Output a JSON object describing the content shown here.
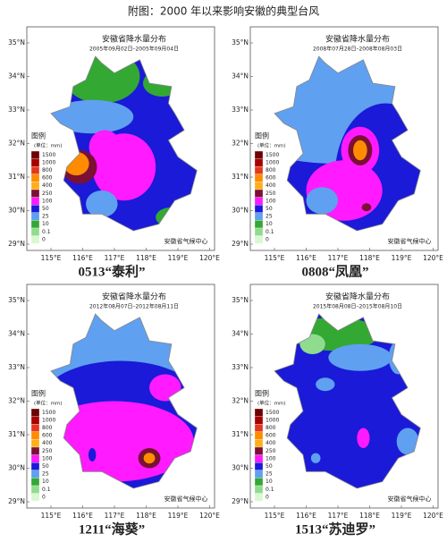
{
  "title": "附图：2000 年以来影响安徽的典型台风",
  "panels": [
    {
      "map_title": "安徽省降水量分布",
      "date_range": "2005年09月02日–2005年09月04日",
      "caption": "0513“泰利”"
    },
    {
      "map_title": "安徽省降水量分布",
      "date_range": "2008年07月28日–2008年08月03日",
      "caption": "0808“凤凰”"
    },
    {
      "map_title": "安徽省降水量分布",
      "date_range": "2012年08月07日–2012年08月11日",
      "caption": "1211“海葵”"
    },
    {
      "map_title": "安徽省降水量分布",
      "date_range": "2015年08月08日–2015年08月10日",
      "caption": "1513“苏迪罗”"
    }
  ],
  "legend": {
    "title": "图例",
    "unit": "(单位：mm)",
    "levels": [
      {
        "label": "1500",
        "color": "#6e0000"
      },
      {
        "label": "1000",
        "color": "#a80000"
      },
      {
        "label": "800",
        "color": "#e03a1a"
      },
      {
        "label": "600",
        "color": "#ff8c00"
      },
      {
        "label": "400",
        "color": "#ffae1a"
      },
      {
        "label": "250",
        "color": "#7a1034"
      },
      {
        "label": "100",
        "color": "#ff1aff"
      },
      {
        "label": "50",
        "color": "#1a1ad8"
      },
      {
        "label": "25",
        "color": "#5fa0f0"
      },
      {
        "label": "10",
        "color": "#33a833"
      },
      {
        "label": "0.1",
        "color": "#8fdc8f"
      },
      {
        "label": "0",
        "color": "#d8f8d0"
      }
    ]
  },
  "lat_labels": [
    "35°N",
    "34°N",
    "33°N",
    "32°N",
    "31°N",
    "30°N",
    "29°N"
  ],
  "lon_labels": [
    "115°E",
    "116°E",
    "117°E",
    "118°E",
    "119°E",
    "120°E"
  ],
  "credit": "安徽省气候中心"
}
